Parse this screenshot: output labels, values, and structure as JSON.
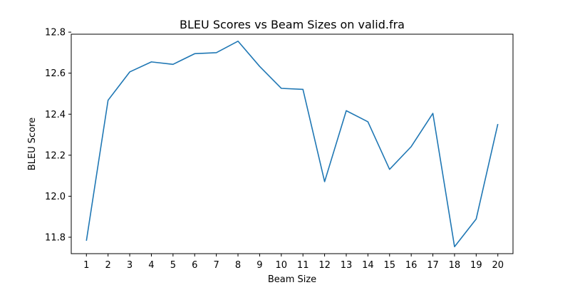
{
  "chart_data": {
    "type": "line",
    "title": "BLEU Scores vs Beam Sizes on valid.fra",
    "xlabel": "Beam Size",
    "ylabel": "BLEU Score",
    "x": [
      1,
      2,
      3,
      4,
      5,
      6,
      7,
      8,
      9,
      10,
      11,
      12,
      13,
      14,
      15,
      16,
      17,
      18,
      19,
      20
    ],
    "series": [
      {
        "color": "#1f77b4",
        "values": [
          11.783,
          12.468,
          12.606,
          12.655,
          12.643,
          12.695,
          12.7,
          12.756,
          12.633,
          12.526,
          12.521,
          12.071,
          12.417,
          12.363,
          12.131,
          12.242,
          12.404,
          11.754,
          11.889,
          12.352
        ]
      }
    ],
    "xlim": [
      0.3,
      20.7
    ],
    "ylim": [
      11.72,
      12.79
    ],
    "xticks": [
      1,
      2,
      3,
      4,
      5,
      6,
      7,
      8,
      9,
      10,
      11,
      12,
      13,
      14,
      15,
      16,
      17,
      18,
      19,
      20
    ],
    "yticks": [
      11.8,
      12.0,
      12.2,
      12.4,
      12.6,
      12.8
    ],
    "ytick_labels": [
      "11.8",
      "12.0",
      "12.2",
      "12.4",
      "12.6",
      "12.8"
    ],
    "grid": false,
    "legend": "none"
  }
}
